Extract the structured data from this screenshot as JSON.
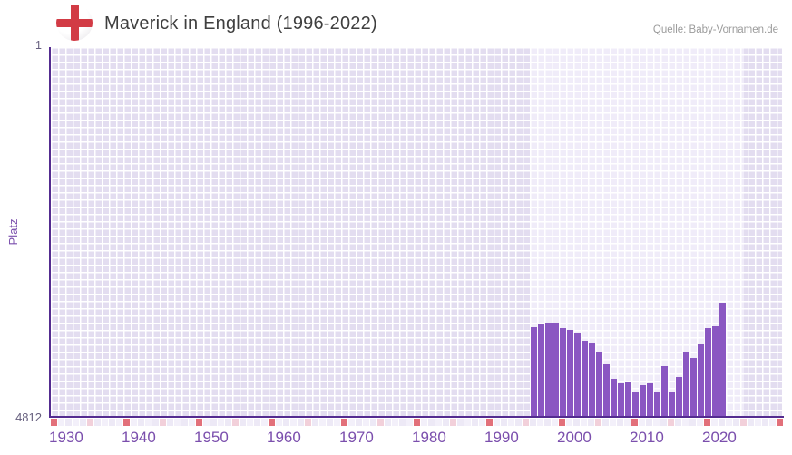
{
  "header": {
    "title": "Maverick in England (1996-2022)",
    "source": "Quelle: Baby-Vornamen.de",
    "flag_icon": "england-flag-icon"
  },
  "axes": {
    "y_label": "Platz",
    "y_top_tick": "1",
    "y_bottom_tick": "4812",
    "x_ticks": [
      "1930",
      "1940",
      "1950",
      "1960",
      "1970",
      "1980",
      "1990",
      "2000",
      "2010",
      "2020"
    ]
  },
  "chart_data": {
    "type": "bar",
    "title": "Maverick in England (1996-2022)",
    "xlabel": "",
    "ylabel": "Platz",
    "grid": true,
    "legend_position": "none",
    "y_axis": {
      "best_value": 1,
      "worst_value": 4812,
      "inverted": true,
      "tick_labels": [
        "1",
        "4812"
      ]
    },
    "x_axis": {
      "start_year": 1930,
      "end_year": 2030,
      "decade_ticks": [
        1930,
        1940,
        1950,
        1960,
        1970,
        1980,
        1990,
        2000,
        2010,
        2020
      ]
    },
    "highlight_band": {
      "from_year": 1996,
      "to_year": 2025
    },
    "timeline_strip": {
      "decade_years_marked": true,
      "half_decade_years_marked": true
    },
    "series": [
      {
        "name": "Platz",
        "x": [
          1996,
          1997,
          1998,
          1999,
          2000,
          2001,
          2002,
          2003,
          2004,
          2005,
          2006,
          2007,
          2008,
          2009,
          2010,
          2011,
          2012,
          2013,
          2014,
          2015,
          2016,
          2017,
          2018,
          2019,
          2020,
          2021,
          2022
        ],
        "values": [
          3640,
          3605,
          3580,
          3580,
          3660,
          3680,
          3715,
          3825,
          3840,
          3965,
          4130,
          4320,
          4380,
          4350,
          4485,
          4400,
          4370,
          4485,
          4150,
          4480,
          4295,
          3965,
          4045,
          3860,
          3655,
          3630,
          3330
        ]
      }
    ]
  },
  "colors": {
    "bar": "#8a57c2",
    "axis_line": "#542c90",
    "grid_cell": "#e3ddf0",
    "grid_cell_highlight": "#f0ecf9",
    "grid_line": "#ffffff",
    "y_tick_label": "#665f7e",
    "x_tick_label": "#7b4fad",
    "y_axis_title": "#7b4fad",
    "title_text": "#3f3f3f",
    "source_text": "#9b9b9b",
    "strip_decade": "#e2707a",
    "strip_half_decade": "#f2d0da",
    "strip_year_even": "#ede9f6",
    "strip_year_odd": "#f3f0fa",
    "flag_cross": "#d23b45"
  }
}
